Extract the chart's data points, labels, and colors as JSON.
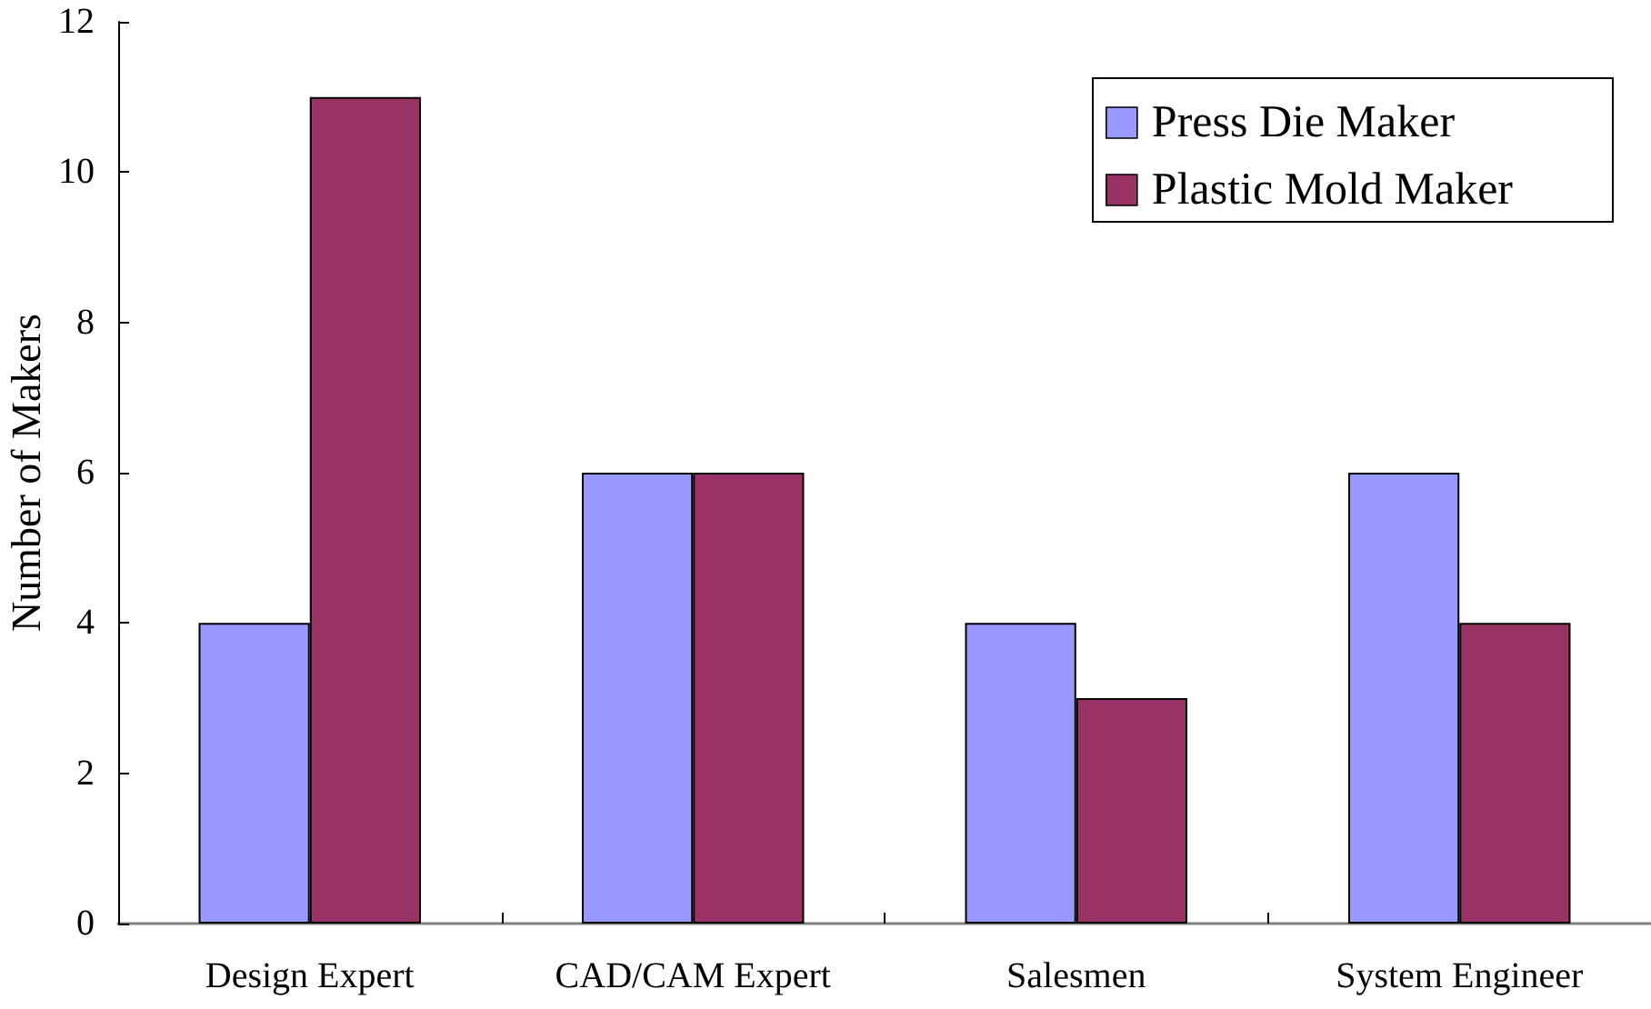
{
  "chart_data": {
    "type": "bar",
    "ylabel": "Number of Makers",
    "categories": [
      "Design Expert",
      "CAD/CAM Expert",
      "Salesmen",
      "System Engineer"
    ],
    "series": [
      {
        "name": "Press Die Maker",
        "color": "#9999ff",
        "values": [
          4,
          6,
          4,
          6
        ]
      },
      {
        "name": "Plastic Mold Maker",
        "color": "#993366",
        "values": [
          11,
          6,
          3,
          4
        ]
      }
    ],
    "ylim": [
      0,
      12
    ],
    "yticks": [
      0,
      2,
      4,
      6,
      8,
      10,
      12
    ],
    "grid": false,
    "legend": "top right"
  }
}
